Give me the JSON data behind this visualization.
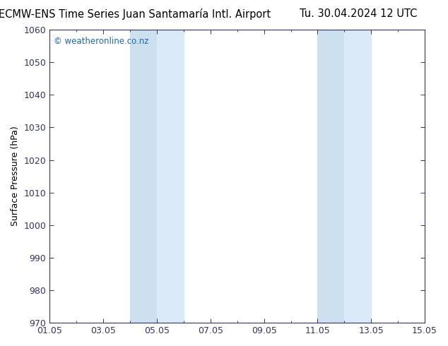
{
  "title_left": "ECMW-ENS Time Series Juan Santamaría Intl. Airport",
  "title_right": "Tu. 30.04.2024 12 UTC",
  "ylabel": "Surface Pressure (hPa)",
  "ylim": [
    970,
    1060
  ],
  "yticks": [
    970,
    980,
    990,
    1000,
    1010,
    1020,
    1030,
    1040,
    1050,
    1060
  ],
  "xlim_start": 0,
  "xlim_end": 14,
  "xtick_positions": [
    0,
    2,
    4,
    6,
    8,
    10,
    12,
    14
  ],
  "xtick_labels": [
    "01.05",
    "03.05",
    "05.05",
    "07.05",
    "09.05",
    "11.05",
    "13.05",
    "15.05"
  ],
  "shaded_bands": [
    {
      "xmin": 3.0,
      "xmax": 4.0
    },
    {
      "xmin": 4.0,
      "xmax": 5.0
    },
    {
      "xmin": 10.0,
      "xmax": 11.0
    },
    {
      "xmin": 11.0,
      "xmax": 12.0
    }
  ],
  "band_color_1": "#cce0f0",
  "band_color_2": "#daeaf8",
  "background_color": "#ffffff",
  "plot_bg_color": "#ffffff",
  "copyright_text": "© weatheronline.co.nz",
  "copyright_color": "#1a6ab5",
  "title_fontsize": 10.5,
  "ylabel_fontsize": 9,
  "tick_fontsize": 9,
  "spine_color": "#333366",
  "tick_color": "#333366"
}
